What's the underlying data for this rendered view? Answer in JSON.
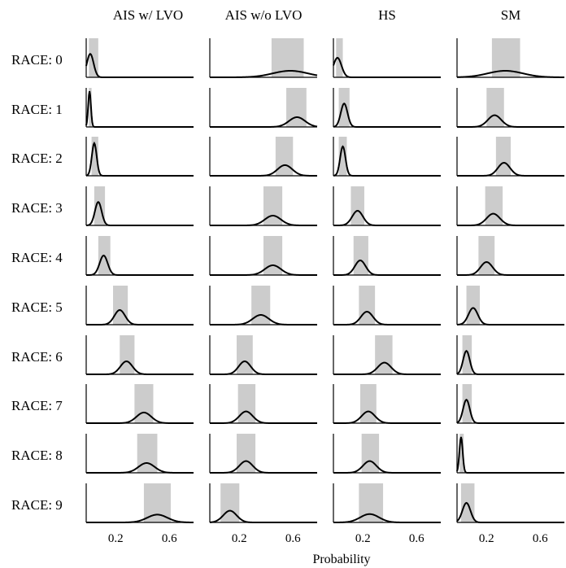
{
  "chart_data": {
    "type": "area",
    "description_free": true,
    "columns": [
      "AIS w/ LVO",
      "AIS w/o LVO",
      "HS",
      "SM"
    ],
    "rows": [
      "RACE: 0",
      "RACE: 1",
      "RACE: 2",
      "RACE: 3",
      "RACE: 4",
      "RACE: 5",
      "RACE: 6",
      "RACE: 7",
      "RACE: 8",
      "RACE: 9"
    ],
    "xlabel": "Probability",
    "xlim": [
      -0.02,
      0.78
    ],
    "xticks": [
      0.2,
      0.6
    ],
    "xtick_labels": [
      "0.2",
      "0.6"
    ],
    "grid": false,
    "colors": {
      "curve": "#000000",
      "band": "#cccccc",
      "axis": "#000000"
    },
    "panels": [
      [
        {
          "mean": 0.01,
          "sd": 0.025,
          "band": [
            0.0,
            0.07
          ]
        },
        {
          "mean": 0.005,
          "sd": 0.01,
          "band": [
            0.0,
            0.02
          ]
        },
        {
          "mean": 0.04,
          "sd": 0.018,
          "band": [
            0.02,
            0.07
          ]
        },
        {
          "mean": 0.07,
          "sd": 0.025,
          "band": [
            0.04,
            0.12
          ]
        },
        {
          "mean": 0.11,
          "sd": 0.03,
          "band": [
            0.07,
            0.16
          ]
        },
        {
          "mean": 0.23,
          "sd": 0.04,
          "band": [
            0.18,
            0.29
          ]
        },
        {
          "mean": 0.28,
          "sd": 0.045,
          "band": [
            0.23,
            0.34
          ]
        },
        {
          "mean": 0.41,
          "sd": 0.055,
          "band": [
            0.34,
            0.48
          ]
        },
        {
          "mean": 0.43,
          "sd": 0.06,
          "band": [
            0.36,
            0.51
          ]
        },
        {
          "mean": 0.51,
          "sd": 0.075,
          "band": [
            0.41,
            0.61
          ]
        }
      ],
      [
        {
          "mean": 0.58,
          "sd": 0.13,
          "band": [
            0.44,
            0.68
          ]
        },
        {
          "mean": 0.63,
          "sd": 0.06,
          "band": [
            0.55,
            0.7
          ]
        },
        {
          "mean": 0.54,
          "sd": 0.055,
          "band": [
            0.47,
            0.6
          ]
        },
        {
          "mean": 0.45,
          "sd": 0.06,
          "band": [
            0.38,
            0.52
          ]
        },
        {
          "mean": 0.45,
          "sd": 0.06,
          "band": [
            0.38,
            0.52
          ]
        },
        {
          "mean": 0.36,
          "sd": 0.06,
          "band": [
            0.29,
            0.43
          ]
        },
        {
          "mean": 0.24,
          "sd": 0.045,
          "band": [
            0.18,
            0.3
          ]
        },
        {
          "mean": 0.25,
          "sd": 0.05,
          "band": [
            0.19,
            0.32
          ]
        },
        {
          "mean": 0.25,
          "sd": 0.05,
          "band": [
            0.18,
            0.32
          ]
        },
        {
          "mean": 0.13,
          "sd": 0.05,
          "band": [
            0.06,
            0.2
          ]
        }
      ],
      [
        {
          "mean": 0.01,
          "sd": 0.03,
          "band": [
            0.0,
            0.05
          ]
        },
        {
          "mean": 0.06,
          "sd": 0.025,
          "band": [
            0.02,
            0.1
          ]
        },
        {
          "mean": 0.05,
          "sd": 0.02,
          "band": [
            0.02,
            0.08
          ]
        },
        {
          "mean": 0.16,
          "sd": 0.04,
          "band": [
            0.11,
            0.21
          ]
        },
        {
          "mean": 0.18,
          "sd": 0.04,
          "band": [
            0.13,
            0.24
          ]
        },
        {
          "mean": 0.23,
          "sd": 0.045,
          "band": [
            0.17,
            0.29
          ]
        },
        {
          "mean": 0.36,
          "sd": 0.05,
          "band": [
            0.29,
            0.42
          ]
        },
        {
          "mean": 0.24,
          "sd": 0.05,
          "band": [
            0.18,
            0.3
          ]
        },
        {
          "mean": 0.25,
          "sd": 0.05,
          "band": [
            0.19,
            0.32
          ]
        },
        {
          "mean": 0.25,
          "sd": 0.07,
          "band": [
            0.17,
            0.35
          ]
        }
      ],
      [
        {
          "mean": 0.34,
          "sd": 0.13,
          "band": [
            0.24,
            0.45
          ]
        },
        {
          "mean": 0.26,
          "sd": 0.05,
          "band": [
            0.2,
            0.33
          ]
        },
        {
          "mean": 0.33,
          "sd": 0.045,
          "band": [
            0.27,
            0.38
          ]
        },
        {
          "mean": 0.25,
          "sd": 0.05,
          "band": [
            0.19,
            0.32
          ]
        },
        {
          "mean": 0.2,
          "sd": 0.045,
          "band": [
            0.14,
            0.26
          ]
        },
        {
          "mean": 0.1,
          "sd": 0.035,
          "band": [
            0.05,
            0.15
          ]
        },
        {
          "mean": 0.05,
          "sd": 0.025,
          "band": [
            0.02,
            0.09
          ]
        },
        {
          "mean": 0.05,
          "sd": 0.025,
          "band": [
            0.02,
            0.09
          ]
        },
        {
          "mean": 0.01,
          "sd": 0.012,
          "band": [
            0.0,
            0.03
          ]
        },
        {
          "mean": 0.05,
          "sd": 0.03,
          "band": [
            0.01,
            0.11
          ]
        }
      ]
    ]
  }
}
